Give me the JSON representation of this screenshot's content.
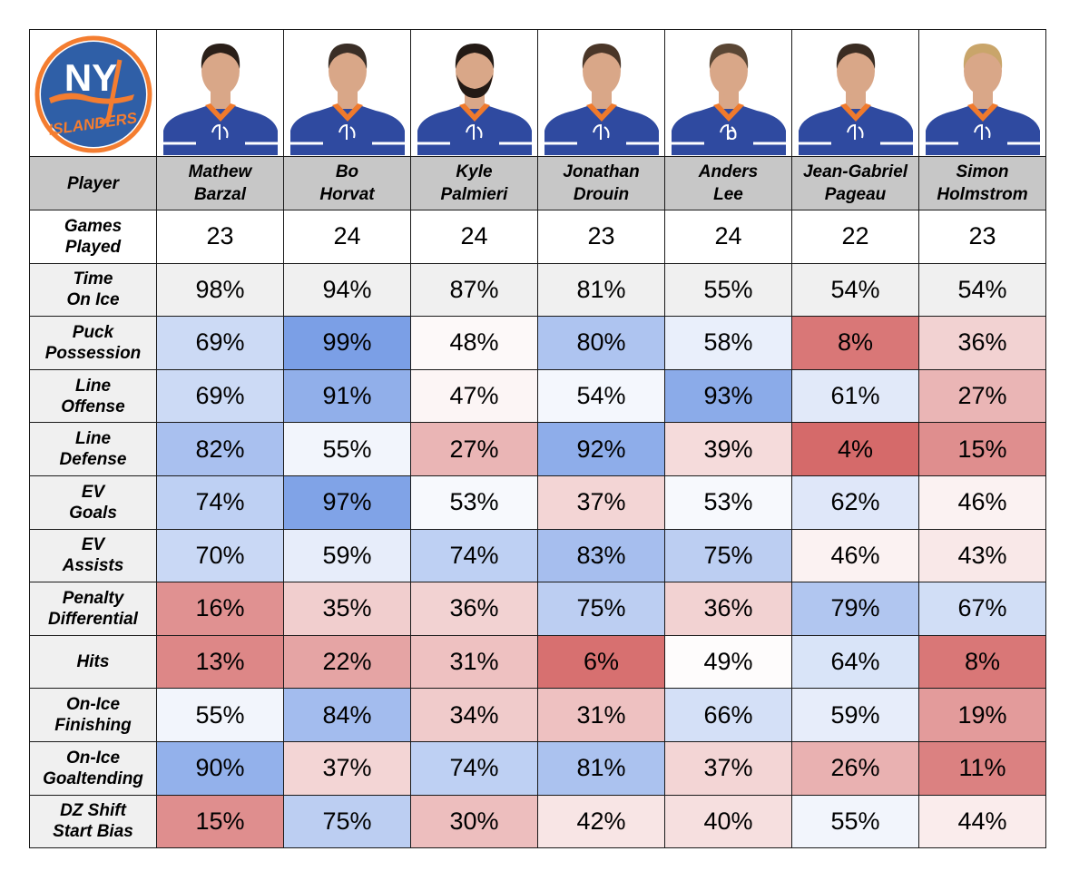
{
  "logo": {
    "top_text": "NY",
    "bottom_text": "ISLANDERS",
    "colors": {
      "primary": "#2f5fa7",
      "accent": "#f47d30",
      "text_light": "#ffffff"
    }
  },
  "header_label": "Player",
  "players": [
    {
      "first": "Mathew",
      "last": "Barzal",
      "hair": "#2a1f18",
      "beard": false,
      "captain": false
    },
    {
      "first": "Bo",
      "last": "Horvat",
      "hair": "#3a2e26",
      "beard": false,
      "captain": false
    },
    {
      "first": "Kyle",
      "last": "Palmieri",
      "hair": "#231a15",
      "beard": true,
      "captain": false
    },
    {
      "first": "Jonathan",
      "last": "Drouin",
      "hair": "#4a3628",
      "beard": false,
      "captain": false
    },
    {
      "first": "Anders",
      "last": "Lee",
      "hair": "#5a4634",
      "beard": false,
      "captain": true,
      "captain_letter": "C"
    },
    {
      "first": "Jean-Gabriel",
      "last": "Pageau",
      "hair": "#3a2c22",
      "beard": false,
      "captain": false
    },
    {
      "first": "Simon",
      "last": "Holmstrom",
      "hair": "#c9a56a",
      "beard": false,
      "captain": false
    }
  ],
  "jersey_colors": {
    "body": "#2f4aa0",
    "collar": "#f07a2c",
    "stripe": "#ffffff",
    "skin": "#d9a788",
    "sky": "#ffffff"
  },
  "color_scale": {
    "low": "#d56a6a",
    "mid": "#ffffff",
    "high": "#7b9fe6"
  },
  "chart_data": {
    "type": "table",
    "columns": [
      "Mathew Barzal",
      "Bo Horvat",
      "Kyle Palmieri",
      "Jonathan Drouin",
      "Anders Lee",
      "Jean-Gabriel Pageau",
      "Simon Holmstrom"
    ],
    "rows": [
      {
        "label": [
          "Games",
          "Played"
        ],
        "values": [
          "23",
          "24",
          "24",
          "23",
          "24",
          "22",
          "23"
        ],
        "colored": false,
        "bg": "white"
      },
      {
        "label": [
          "Time",
          "On Ice"
        ],
        "values": [
          "98%",
          "94%",
          "87%",
          "81%",
          "55%",
          "54%",
          "54%"
        ],
        "colored": false,
        "bg": "gray"
      },
      {
        "label": [
          "Puck",
          "Possession"
        ],
        "values": [
          "69%",
          "99%",
          "48%",
          "80%",
          "58%",
          "8%",
          "36%"
        ],
        "colored": true
      },
      {
        "label": [
          "Line",
          "Offense"
        ],
        "values": [
          "69%",
          "91%",
          "47%",
          "54%",
          "93%",
          "61%",
          "27%"
        ],
        "colored": true
      },
      {
        "label": [
          "Line",
          "Defense"
        ],
        "values": [
          "82%",
          "55%",
          "27%",
          "92%",
          "39%",
          "4%",
          "15%"
        ],
        "colored": true
      },
      {
        "label": [
          "EV",
          "Goals"
        ],
        "values": [
          "74%",
          "97%",
          "53%",
          "37%",
          "53%",
          "62%",
          "46%"
        ],
        "colored": true
      },
      {
        "label": [
          "EV",
          "Assists"
        ],
        "values": [
          "70%",
          "59%",
          "74%",
          "83%",
          "75%",
          "46%",
          "43%"
        ],
        "colored": true
      },
      {
        "label": [
          "Penalty",
          "Differential"
        ],
        "values": [
          "16%",
          "35%",
          "36%",
          "75%",
          "36%",
          "79%",
          "67%"
        ],
        "colored": true
      },
      {
        "label": [
          "Hits"
        ],
        "values": [
          "13%",
          "22%",
          "31%",
          "6%",
          "49%",
          "64%",
          "8%"
        ],
        "colored": true
      },
      {
        "label": [
          "On-Ice",
          "Finishing"
        ],
        "values": [
          "55%",
          "84%",
          "34%",
          "31%",
          "66%",
          "59%",
          "19%"
        ],
        "colored": true
      },
      {
        "label": [
          "On-Ice",
          "Goaltending"
        ],
        "values": [
          "90%",
          "37%",
          "74%",
          "81%",
          "37%",
          "26%",
          "11%"
        ],
        "colored": true
      },
      {
        "label": [
          "DZ Shift",
          "Start Bias"
        ],
        "values": [
          "15%",
          "75%",
          "30%",
          "42%",
          "40%",
          "55%",
          "44%"
        ],
        "colored": true
      }
    ]
  }
}
